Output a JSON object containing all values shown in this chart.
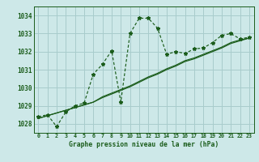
{
  "title": "Graphe pression niveau de la mer (hPa)",
  "background_color": "#cde8e8",
  "grid_color": "#a8cccc",
  "line_color": "#1a5c1a",
  "xlim": [
    -0.5,
    23.5
  ],
  "ylim": [
    1027.5,
    1034.5
  ],
  "yticks": [
    1028,
    1029,
    1030,
    1031,
    1032,
    1033,
    1034
  ],
  "xticks": [
    0,
    1,
    2,
    3,
    4,
    5,
    6,
    7,
    8,
    9,
    10,
    11,
    12,
    13,
    14,
    15,
    16,
    17,
    18,
    19,
    20,
    21,
    22,
    23
  ],
  "series1_x": [
    0,
    1,
    2,
    3,
    4,
    5,
    6,
    7,
    8,
    9,
    10,
    11,
    12,
    13,
    14,
    15,
    16,
    17,
    18,
    19,
    20,
    21,
    22,
    23
  ],
  "series1_y": [
    1028.4,
    1028.5,
    1027.85,
    1028.65,
    1029.0,
    1029.15,
    1030.75,
    1031.3,
    1032.05,
    1029.2,
    1033.0,
    1033.85,
    1033.85,
    1033.3,
    1031.85,
    1032.0,
    1031.9,
    1032.15,
    1032.2,
    1032.5,
    1032.9,
    1033.0,
    1032.7,
    1032.8
  ],
  "series2_y": [
    1028.3,
    1028.45,
    1028.6,
    1028.75,
    1028.9,
    1029.05,
    1029.2,
    1029.5,
    1029.7,
    1029.9,
    1030.1,
    1030.35,
    1030.6,
    1030.8,
    1031.05,
    1031.25,
    1031.5,
    1031.65,
    1031.85,
    1032.05,
    1032.25,
    1032.5,
    1032.65,
    1032.75
  ],
  "series3_y": [
    1028.3,
    1028.45,
    1028.6,
    1028.75,
    1028.9,
    1029.05,
    1029.2,
    1029.45,
    1029.65,
    1029.85,
    1030.05,
    1030.3,
    1030.55,
    1030.75,
    1031.0,
    1031.2,
    1031.45,
    1031.6,
    1031.8,
    1032.0,
    1032.2,
    1032.45,
    1032.6,
    1032.75
  ]
}
